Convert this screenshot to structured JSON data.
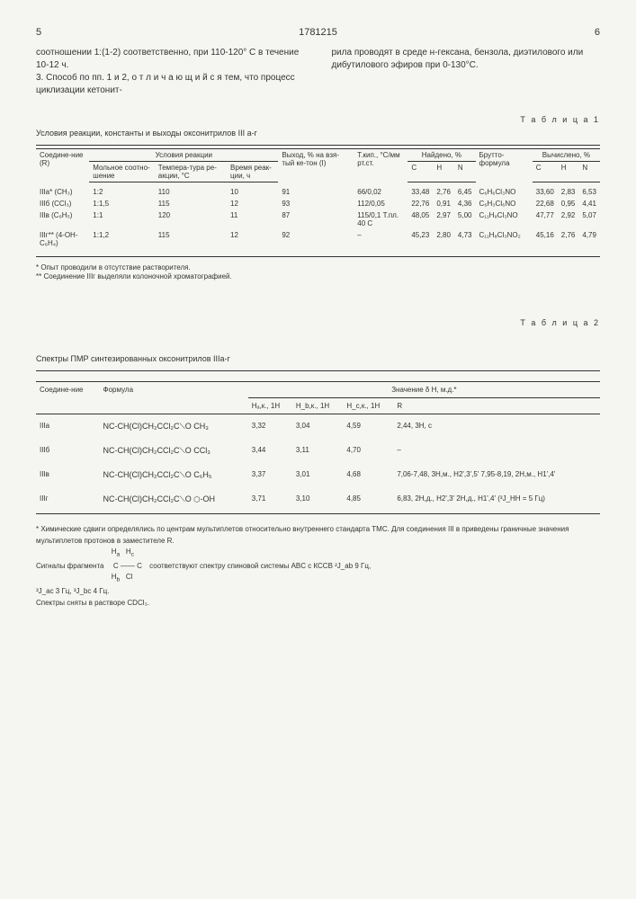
{
  "header": {
    "left_page": "5",
    "doc_number": "1781215",
    "right_page": "6"
  },
  "paragraphs": {
    "left": "соотношении 1:(1-2) соответственно, при 110-120° С в течение 10-12 ч.\n3. Способ по пп. 1 и 2, о т л и ч а ю щ и й с я тем, что процесс циклизации кетонит-",
    "right": "рила проводят в среде н-гексана, бензола, диэтилового или дибутилового эфиров при 0-130°С."
  },
  "table1": {
    "label": "Т а б л и ц а 1",
    "caption": "Условия реакции, константы и выходы оксонитрилов III а-г",
    "headers_row1": [
      "Соедине-ние (R)",
      "Условия реакции",
      "",
      "",
      "Выход, % на взя-тый ке-тон (I)",
      "Т.кип., °C/мм рт.ст.",
      "Найдено, %",
      "",
      "",
      "Брутто-формула",
      "Вычислено, %",
      "",
      ""
    ],
    "headers_row2": [
      "",
      "Мольное соотно-шение",
      "Темпера-тура ре-акции, °С",
      "Время реак-ции, ч",
      "",
      "",
      "C",
      "H",
      "N",
      "",
      "C",
      "H",
      "N"
    ],
    "rows": [
      [
        "IIIа* (CH₃)",
        "1:2",
        "110",
        "10",
        "91",
        "66/0,02",
        "33,48",
        "2,76",
        "6,45",
        "C₆H₆Cl₃NO",
        "33,60",
        "2,83",
        "6,53"
      ],
      [
        "IIIб (CCl₃)",
        "1:1,5",
        "115",
        "12",
        "93",
        "112/0,05",
        "22,76",
        "0,91",
        "4,36",
        "C₆H₃Cl₆NO",
        "22,68",
        "0,95",
        "4,41"
      ],
      [
        "IIIв (C₆H₅)",
        "1:1",
        "120",
        "11",
        "87",
        "115/0,1 Т.пл. 40 С",
        "48,05",
        "2,97",
        "5,00",
        "C₁₁H₈Cl₃NO",
        "47,77",
        "2,92",
        "5,07"
      ],
      [
        "IIIг** (4-OH-C₆H₄)",
        "1:1,2",
        "115",
        "12",
        "92",
        "–",
        "45,23",
        "2,80",
        "4,73",
        "C₁₁H₈Cl₃NO₂",
        "45,16",
        "2,76",
        "4,79"
      ]
    ],
    "footnote1": "* Опыт проводили в отсутствие растворителя.",
    "footnote2": "** Соединение IIIг выделяли колоночной хроматографией."
  },
  "table2": {
    "label": "Т а б л и ц а 2",
    "caption": "Спектры ПМР синтезированных оксонитрилов IIIа-г",
    "headers_row1": [
      "Соедине-ние",
      "Формула",
      "Значение δ H, м.д.*",
      "",
      "",
      ""
    ],
    "headers_row2": [
      "",
      "",
      "Hₐ,к., 1H",
      "H_b,к., 1H",
      "H_c,к., 1H",
      "R"
    ],
    "rows": [
      {
        "id": "IIIа",
        "formula": "NC-CH(Cl)CH₂CCl₂C⟍O  CH₃",
        "ha": "3,32",
        "hb": "3,04",
        "hc": "4,59",
        "r": "2,44, 3H, с"
      },
      {
        "id": "IIIб",
        "formula": "NC-CH(Cl)CH₂CCl₂C⟍O  CCl₃",
        "ha": "3,44",
        "hb": "3,11",
        "hc": "4,70",
        "r": "–"
      },
      {
        "id": "IIIв",
        "formula": "NC-CH(Cl)CH₂CCl₂C⟍O  C₆H₅",
        "ha": "3,37",
        "hb": "3,01",
        "hc": "4,68",
        "r": "7,06-7,48, 3H,м., H2',3',5'  7,95-8,19, 2H,м., H1',4'"
      },
      {
        "id": "IIIг",
        "formula": "NC-CH(Cl)CH₂CCl₂C⟍O  ⬡-OH",
        "ha": "3,71",
        "hb": "3,10",
        "hc": "4,85",
        "r": "6,83, 2H,д., H2',3'  2H,д., H1',4' (³J_HH = 5 Гц)"
      }
    ],
    "footnote_main": "* Химические сдвиги определялись по центрам мультиплетов относительно внутреннего стандарта ТМС. Для соединения III в приведены граничные значения мультиплетов протонов в заместителе R.",
    "footnote_frag": "Сигналы фрагмента",
    "footnote_frag2": "соответствуют спектру спиновой системы ABC с КССВ ²J_ab 9 Гц,",
    "footnote_j": "³J_ac 3 Гц, ³J_bc 4 Гц.",
    "footnote_solvent": "Спектры сняты в растворе CDCl₃."
  }
}
